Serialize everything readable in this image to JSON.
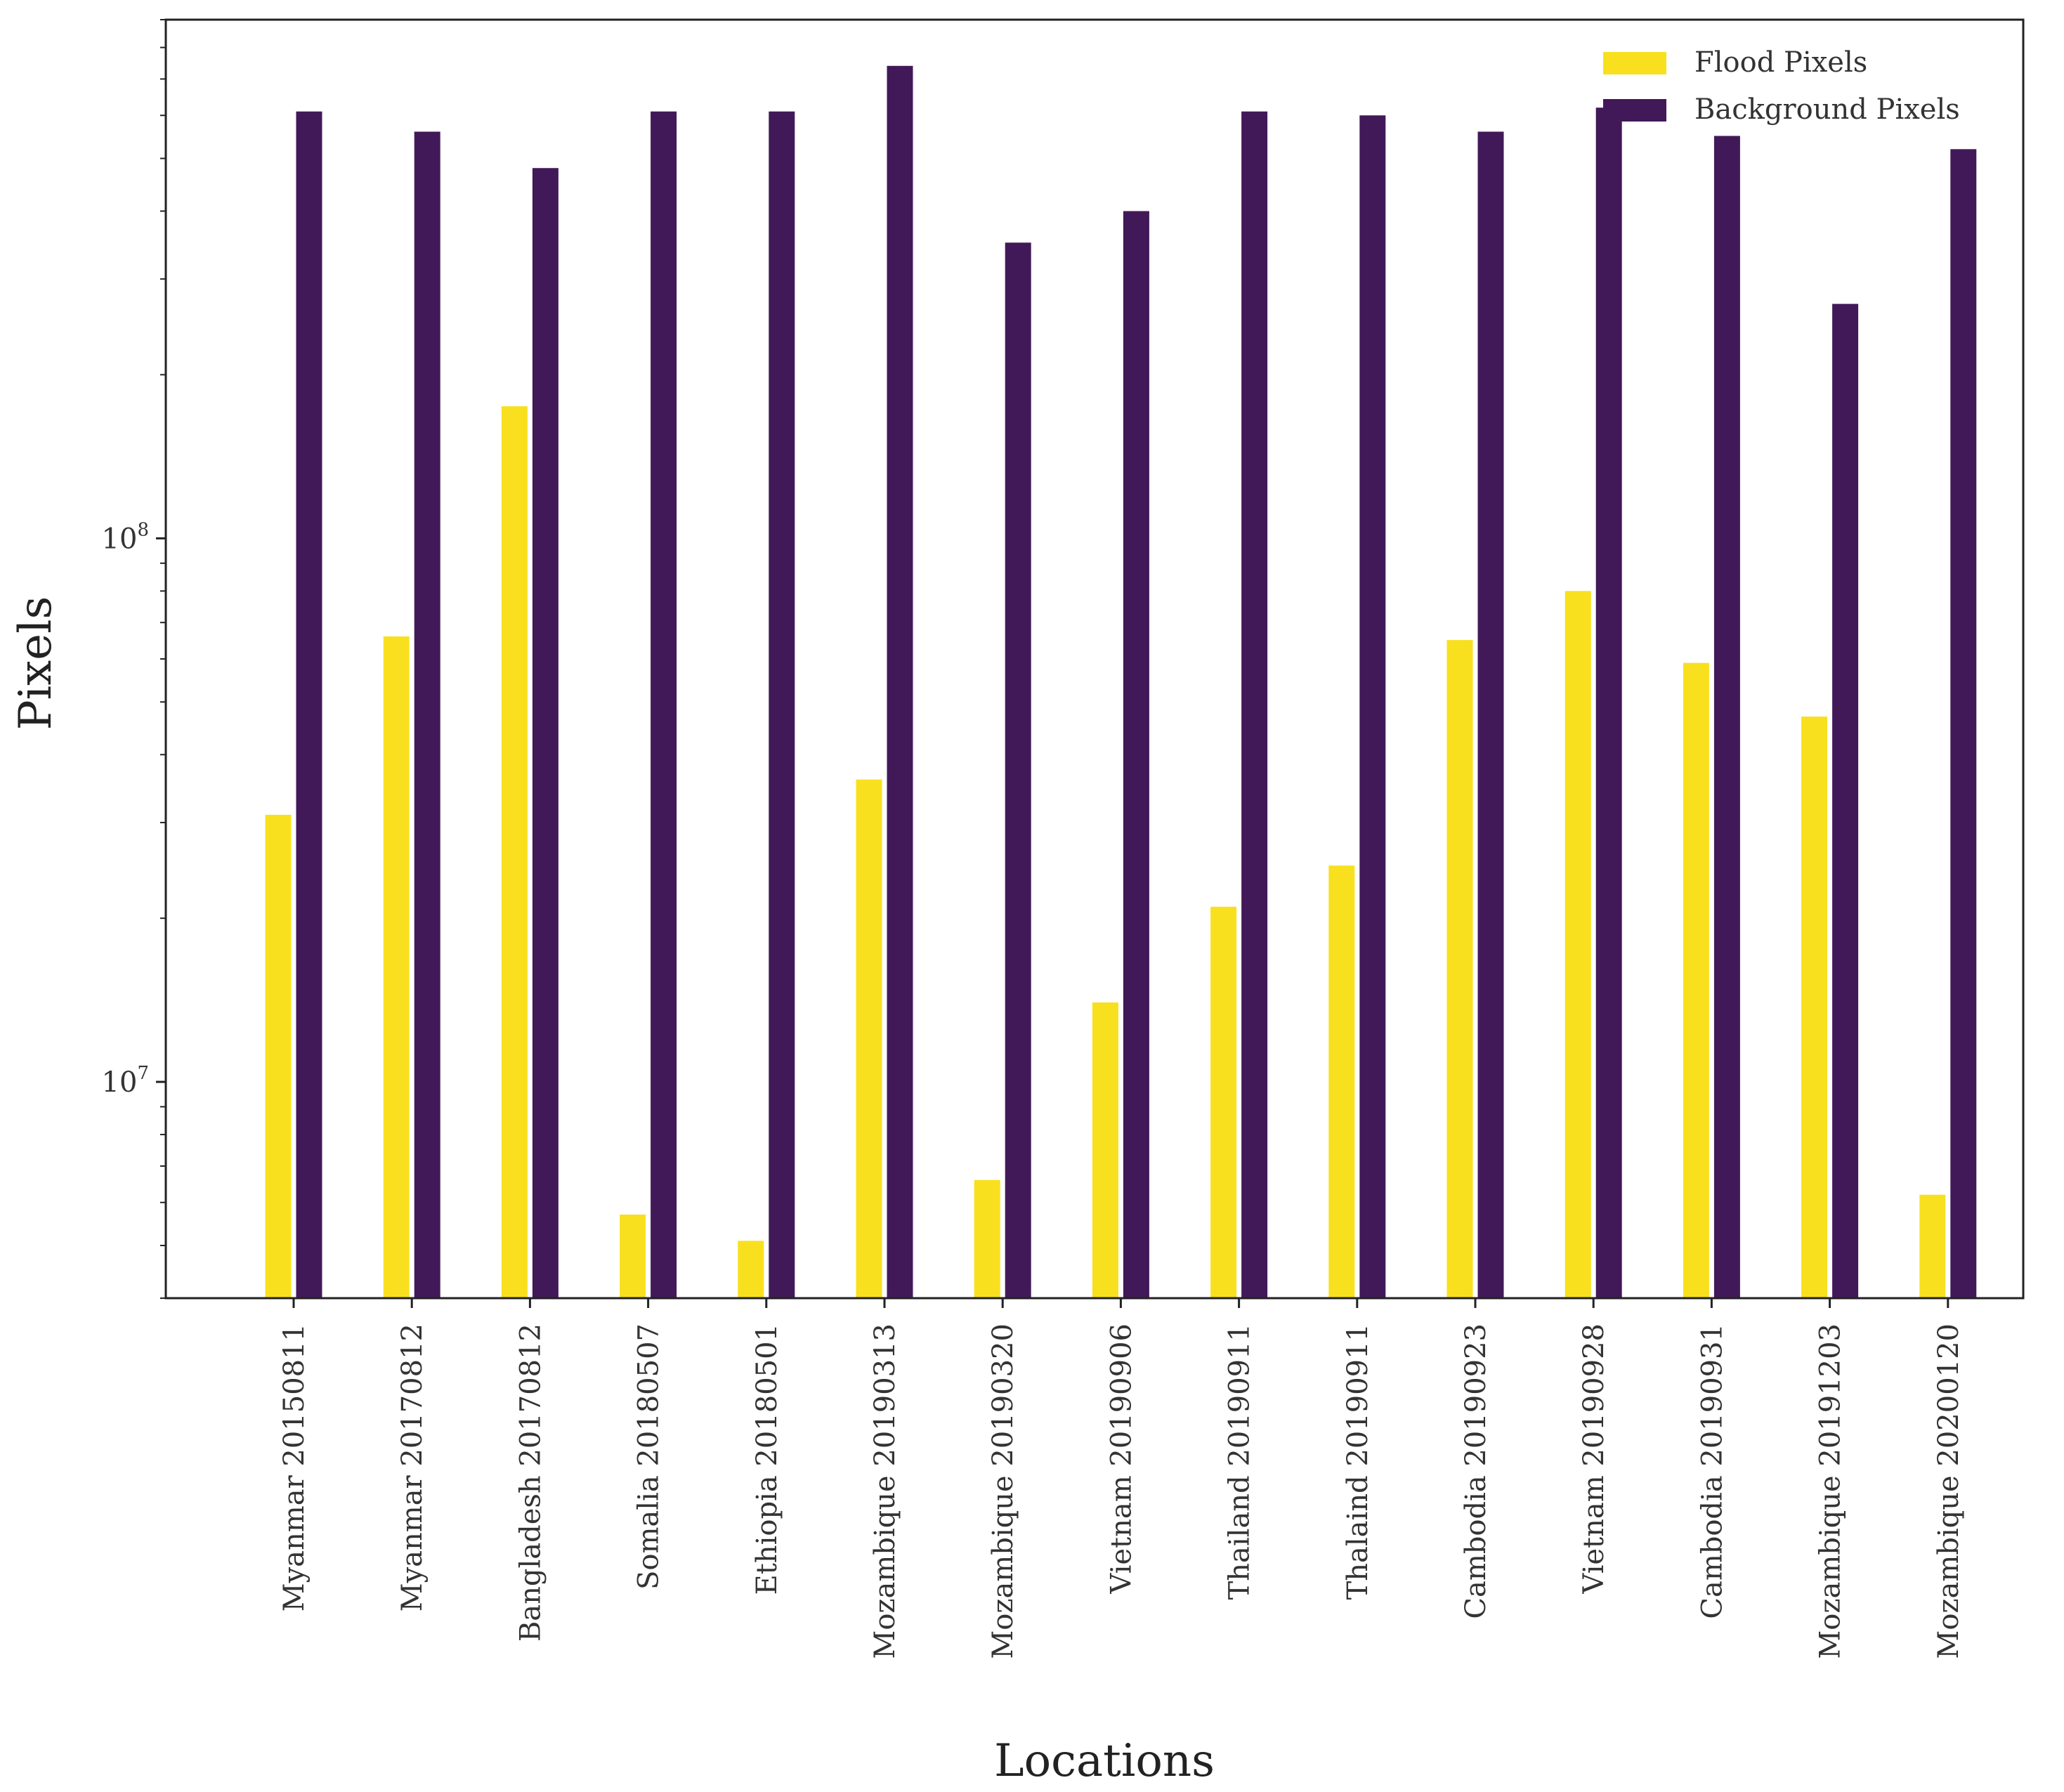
{
  "chart_data": {
    "type": "bar",
    "title": "",
    "xlabel": "Locations",
    "ylabel": "Pixels",
    "yscale": "log",
    "ylim": [
      4000000,
      900000000
    ],
    "y_major_ticks": [
      {
        "value": 10000000,
        "base": "10",
        "exp": "7"
      },
      {
        "value": 100000000,
        "base": "10",
        "exp": "8"
      }
    ],
    "grid": false,
    "legend_position": "top-right",
    "categories": [
      "Myanmar 20150811",
      "Myanmar 20170812",
      "Bangladesh 20170812",
      "Somalia 20180507",
      "Ethiopia 20180501",
      "Mozambique 20190313",
      "Mozambique 20190320",
      "Vietnam 20190906",
      "Thailand 20190911",
      "Thalaind 20190911",
      "Cambodia 20190923",
      "Vietnam 20190928",
      "Cambodia 20190931",
      "Mozambique 20191203",
      "Mozambique 20200120"
    ],
    "series": [
      {
        "name": "Flood Pixels",
        "color": "#f8e01f",
        "values": [
          31000000,
          66000000,
          175000000,
          5700000,
          5100000,
          36000000,
          6600000,
          14000000,
          21000000,
          25000000,
          65000000,
          80000000,
          59000000,
          47000000,
          6200000
        ]
      },
      {
        "name": "Background Pixels",
        "color": "#421958",
        "values": [
          610000000,
          560000000,
          480000000,
          610000000,
          610000000,
          740000000,
          350000000,
          400000000,
          610000000,
          600000000,
          560000000,
          620000000,
          550000000,
          270000000,
          520000000
        ]
      }
    ]
  }
}
